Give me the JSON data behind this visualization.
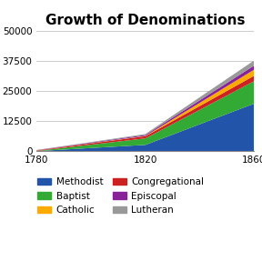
{
  "title": "Growth of Denominations",
  "title_fontsize": 11,
  "title_fontweight": "bold",
  "years": [
    1780,
    1820,
    1860
  ],
  "series": {
    "Methodist": [
      100,
      2700,
      19883
    ],
    "Baptist": [
      80,
      2700,
      9375
    ],
    "Congregational": [
      200,
      900,
      2234
    ],
    "Catholic": [
      50,
      124,
      2550
    ],
    "Episcopal": [
      100,
      400,
      1700
    ],
    "Lutheran": [
      40,
      400,
      2128
    ]
  },
  "colors": {
    "Methodist": "#2255aa",
    "Baptist": "#33aa33",
    "Congregational": "#cc2222",
    "Catholic": "#ffaa00",
    "Episcopal": "#882299",
    "Lutheran": "#999999"
  },
  "stack_order": [
    "Methodist",
    "Baptist",
    "Congregational",
    "Catholic",
    "Episcopal",
    "Lutheran"
  ],
  "legend_col1": [
    "Methodist",
    "Catholic",
    "Episcopal"
  ],
  "legend_col2": [
    "Baptist",
    "Congregational",
    "Lutheran"
  ],
  "ylim": [
    0,
    50000
  ],
  "yticks": [
    0,
    12500,
    25000,
    37500,
    50000
  ],
  "xticks": [
    1780,
    1820,
    1860
  ],
  "background_color": "#ffffff",
  "grid_color": "#cccccc"
}
